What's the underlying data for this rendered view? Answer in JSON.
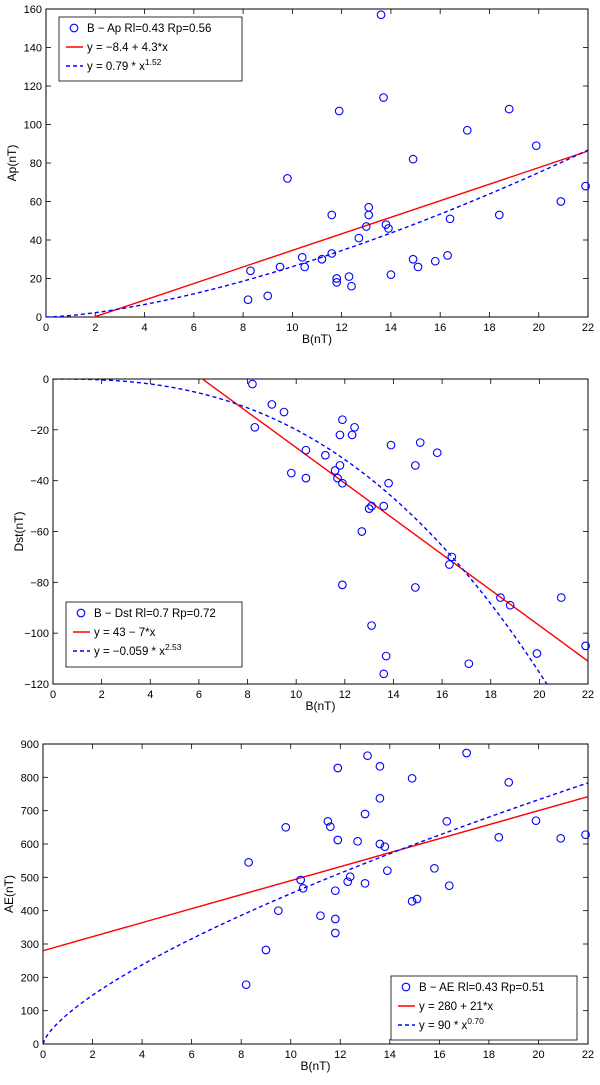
{
  "chart_data": [
    {
      "type": "scatter",
      "xlabel": "B(nT)",
      "ylabel": "Ap(nT)",
      "xlim": [
        0,
        22
      ],
      "ylim": [
        0,
        160
      ],
      "xticks": [
        0,
        2,
        4,
        6,
        8,
        10,
        12,
        14,
        16,
        18,
        20,
        22
      ],
      "yticks": [
        0,
        20,
        40,
        60,
        80,
        100,
        120,
        140,
        160
      ],
      "legend_position": "top-left",
      "legend": {
        "scatter": "B − Ap  Rl=0.43 Rp=0.56",
        "linear": "y = −8.4 + 4.3*x",
        "power_base": "y = 0.79 * x",
        "power_exp": "1.52"
      },
      "colors": {
        "points": "#0000ff",
        "linear": "#ff0000",
        "power": "#0000ff"
      },
      "linear_fit": {
        "a": -8.4,
        "b": 4.3
      },
      "power_fit": {
        "c": 0.79,
        "p": 1.52
      },
      "points": [
        [
          8.2,
          9
        ],
        [
          8.3,
          24
        ],
        [
          9.0,
          11
        ],
        [
          9.5,
          26
        ],
        [
          9.8,
          72
        ],
        [
          10.4,
          31
        ],
        [
          10.5,
          26
        ],
        [
          11.2,
          30
        ],
        [
          11.6,
          33
        ],
        [
          11.6,
          53
        ],
        [
          11.8,
          18
        ],
        [
          11.8,
          20
        ],
        [
          11.9,
          107
        ],
        [
          12.3,
          21
        ],
        [
          12.4,
          16
        ],
        [
          12.7,
          41
        ],
        [
          13.0,
          47
        ],
        [
          13.1,
          53
        ],
        [
          13.1,
          57
        ],
        [
          13.6,
          157
        ],
        [
          13.7,
          114
        ],
        [
          13.8,
          48
        ],
        [
          13.9,
          46
        ],
        [
          14.0,
          22
        ],
        [
          14.9,
          82
        ],
        [
          14.9,
          30
        ],
        [
          15.1,
          26
        ],
        [
          15.8,
          29
        ],
        [
          16.3,
          32
        ],
        [
          16.4,
          51
        ],
        [
          17.1,
          97
        ],
        [
          18.4,
          53
        ],
        [
          18.8,
          108
        ],
        [
          19.9,
          89
        ],
        [
          20.9,
          60
        ],
        [
          21.9,
          68
        ]
      ]
    },
    {
      "type": "scatter",
      "xlabel": "B(nT)",
      "ylabel": "Dst(nT)",
      "xlim": [
        0,
        22
      ],
      "ylim": [
        -120,
        0
      ],
      "xticks": [
        0,
        2,
        4,
        6,
        8,
        10,
        12,
        14,
        16,
        18,
        20,
        22
      ],
      "yticks": [
        -120,
        -100,
        -80,
        -60,
        -40,
        -20,
        0
      ],
      "legend_position": "bottom-left",
      "legend": {
        "scatter": "B − Dst  Rl=0.7 Rp=0.72",
        "linear": "y = 43 − 7*x",
        "power_base": "y = −0.059 * x",
        "power_exp": "2.53"
      },
      "colors": {
        "points": "#0000ff",
        "linear": "#ff0000",
        "power": "#0000ff"
      },
      "linear_fit": {
        "a": 43,
        "b": -7
      },
      "power_fit": {
        "c": -0.059,
        "p": 2.53
      },
      "points": [
        [
          8.2,
          -2
        ],
        [
          8.3,
          -19
        ],
        [
          9.0,
          -10
        ],
        [
          9.5,
          -13
        ],
        [
          9.8,
          -37
        ],
        [
          10.4,
          -28
        ],
        [
          10.4,
          -39
        ],
        [
          11.2,
          -30
        ],
        [
          11.6,
          -36
        ],
        [
          11.7,
          -39
        ],
        [
          11.8,
          -34
        ],
        [
          11.8,
          -22
        ],
        [
          11.9,
          -16
        ],
        [
          11.9,
          -41
        ],
        [
          11.9,
          -81
        ],
        [
          12.3,
          -22
        ],
        [
          12.4,
          -19
        ],
        [
          12.7,
          -60
        ],
        [
          13.0,
          -51
        ],
        [
          13.1,
          -50
        ],
        [
          13.1,
          -97
        ],
        [
          13.6,
          -50
        ],
        [
          13.6,
          -116
        ],
        [
          13.7,
          -109
        ],
        [
          13.8,
          -41
        ],
        [
          13.9,
          -26
        ],
        [
          14.9,
          -34
        ],
        [
          14.9,
          -82
        ],
        [
          15.1,
          -25
        ],
        [
          15.8,
          -29
        ],
        [
          16.3,
          -73
        ],
        [
          16.4,
          -70
        ],
        [
          17.1,
          -112
        ],
        [
          18.4,
          -86
        ],
        [
          18.8,
          -89
        ],
        [
          19.9,
          -108
        ],
        [
          20.9,
          -86
        ],
        [
          21.9,
          -105
        ]
      ]
    },
    {
      "type": "scatter",
      "xlabel": "B(nT)",
      "ylabel": "AE(nT)",
      "xlim": [
        0,
        22
      ],
      "ylim": [
        0,
        900
      ],
      "xticks": [
        0,
        2,
        4,
        6,
        8,
        10,
        12,
        14,
        16,
        18,
        20,
        22
      ],
      "yticks": [
        0,
        100,
        200,
        300,
        400,
        500,
        600,
        700,
        800,
        900
      ],
      "legend_position": "bottom-right",
      "legend": {
        "scatter": "B − AE  Rl=0.43 Rp=0.51",
        "linear": "y = 280 + 21*x",
        "power_base": "y = 90 * x",
        "power_exp": "0.70"
      },
      "colors": {
        "points": "#0000ff",
        "linear": "#ff0000",
        "power": "#0000ff"
      },
      "linear_fit": {
        "a": 280,
        "b": 21
      },
      "power_fit": {
        "c": 90,
        "p": 0.7
      },
      "points": [
        [
          8.2,
          178
        ],
        [
          8.3,
          545
        ],
        [
          9.0,
          282
        ],
        [
          9.5,
          400
        ],
        [
          9.8,
          650
        ],
        [
          10.4,
          492
        ],
        [
          10.5,
          467
        ],
        [
          11.2,
          385
        ],
        [
          11.5,
          668
        ],
        [
          11.6,
          652
        ],
        [
          11.8,
          333
        ],
        [
          11.8,
          375
        ],
        [
          11.8,
          460
        ],
        [
          11.9,
          612
        ],
        [
          11.9,
          828
        ],
        [
          12.3,
          487
        ],
        [
          12.4,
          502
        ],
        [
          12.7,
          608
        ],
        [
          13.0,
          482
        ],
        [
          13.0,
          690
        ],
        [
          13.1,
          865
        ],
        [
          13.6,
          600
        ],
        [
          13.6,
          737
        ],
        [
          13.6,
          833
        ],
        [
          13.8,
          592
        ],
        [
          13.9,
          520
        ],
        [
          14.9,
          428
        ],
        [
          14.9,
          797
        ],
        [
          15.1,
          435
        ],
        [
          15.8,
          527
        ],
        [
          16.3,
          668
        ],
        [
          16.4,
          475
        ],
        [
          17.1,
          873
        ],
        [
          18.4,
          620
        ],
        [
          18.8,
          785
        ],
        [
          19.9,
          670
        ],
        [
          20.9,
          617
        ],
        [
          21.9,
          628
        ]
      ]
    }
  ]
}
